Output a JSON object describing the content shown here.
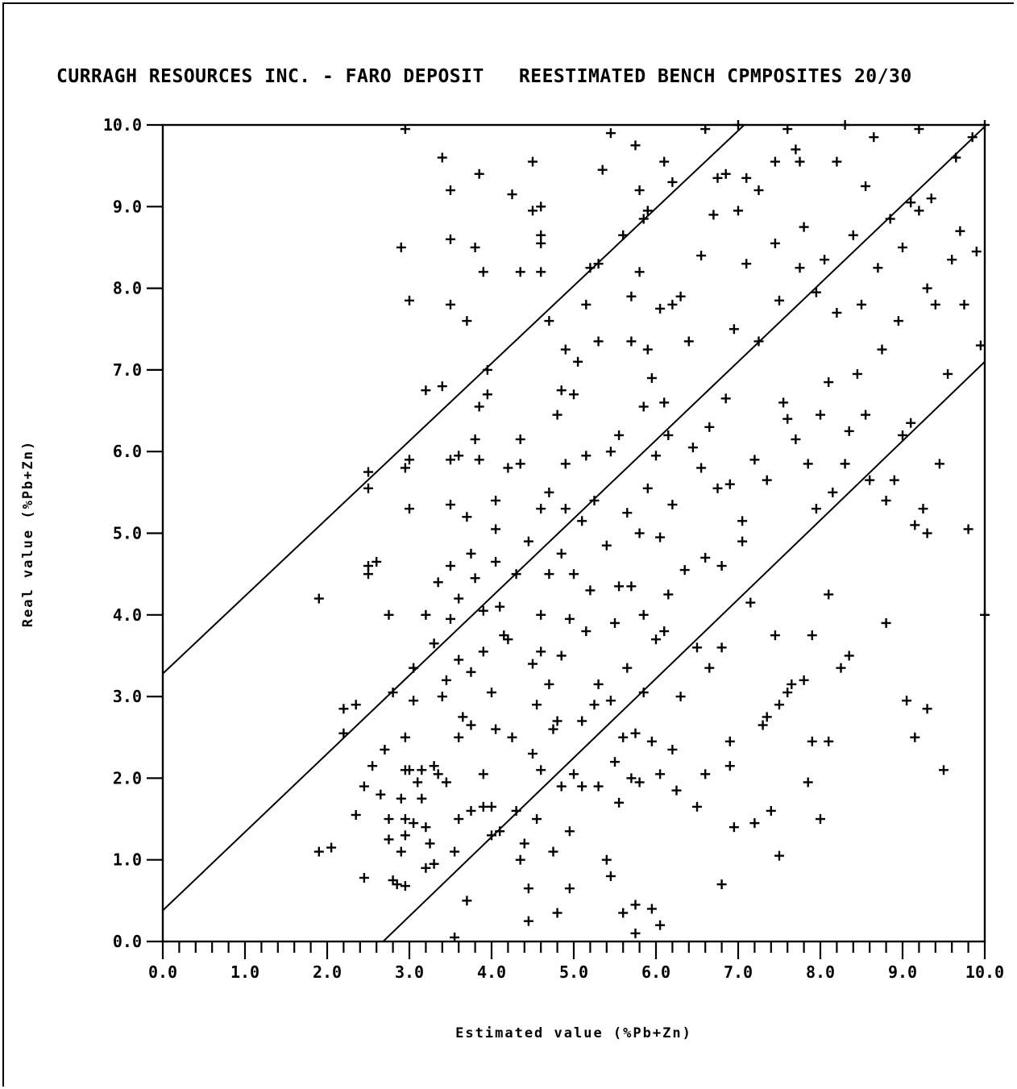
{
  "chart_data": {
    "type": "scatter",
    "title": "CURRAGH RESOURCES INC. - FARO DEPOSIT   REESTIMATED BENCH CPMPOSITES 20/30",
    "xlabel": "Estimated value  (%Pb+Zn)",
    "ylabel": "Real value  (%Pb+Zn)",
    "xlim": [
      0,
      10
    ],
    "ylim": [
      0,
      10
    ],
    "xticks": [
      "0.0",
      "1.0",
      "2.0",
      "3.0",
      "4.0",
      "5.0",
      "6.0",
      "7.0",
      "8.0",
      "9.0",
      "10.0"
    ],
    "yticks": [
      "0.0",
      "1.0",
      "2.0",
      "3.0",
      "4.0",
      "5.0",
      "6.0",
      "7.0",
      "8.0",
      "9.0",
      "10.0"
    ],
    "grid": false,
    "marker": "+",
    "reference_lines": [
      {
        "slope": 0.95,
        "intercept": 3.28
      },
      {
        "slope": 0.96,
        "intercept": 0.38
      },
      {
        "slope": 0.97,
        "intercept": -2.6
      }
    ],
    "points": [
      [
        1.9,
        1.1
      ],
      [
        2.05,
        1.15
      ],
      [
        1.9,
        4.2
      ],
      [
        2.2,
        2.85
      ],
      [
        2.35,
        2.9
      ],
      [
        2.2,
        2.55
      ],
      [
        2.35,
        1.55
      ],
      [
        2.45,
        0.78
      ],
      [
        2.45,
        1.9
      ],
      [
        2.55,
        2.15
      ],
      [
        2.5,
        4.5
      ],
      [
        2.5,
        4.6
      ],
      [
        2.6,
        4.65
      ],
      [
        2.5,
        5.55
      ],
      [
        2.5,
        5.75
      ],
      [
        2.75,
        1.5
      ],
      [
        2.8,
        0.75
      ],
      [
        2.85,
        0.7
      ],
      [
        2.75,
        4.0
      ],
      [
        2.8,
        3.05
      ],
      [
        2.7,
        2.35
      ],
      [
        2.75,
        1.25
      ],
      [
        2.65,
        1.8
      ],
      [
        2.95,
        0.68
      ],
      [
        2.9,
        1.1
      ],
      [
        2.95,
        1.5
      ],
      [
        2.95,
        1.3
      ],
      [
        2.9,
        1.75
      ],
      [
        2.95,
        2.1
      ],
      [
        2.95,
        2.5
      ],
      [
        3.0,
        2.1
      ],
      [
        3.05,
        1.45
      ],
      [
        3.1,
        1.95
      ],
      [
        3.15,
        1.75
      ],
      [
        3.15,
        2.1
      ],
      [
        3.05,
        2.95
      ],
      [
        3.05,
        3.35
      ],
      [
        3.0,
        5.3
      ],
      [
        2.95,
        5.8
      ],
      [
        3.0,
        5.9
      ],
      [
        2.9,
        8.5
      ],
      [
        3.0,
        7.85
      ],
      [
        2.95,
        9.95
      ],
      [
        3.2,
        0.9
      ],
      [
        3.3,
        0.95
      ],
      [
        3.2,
        1.4
      ],
      [
        3.25,
        1.2
      ],
      [
        3.3,
        2.15
      ],
      [
        3.35,
        2.05
      ],
      [
        3.45,
        1.95
      ],
      [
        3.3,
        3.65
      ],
      [
        3.35,
        4.4
      ],
      [
        3.2,
        4.0
      ],
      [
        3.2,
        6.75
      ],
      [
        3.4,
        6.8
      ],
      [
        3.4,
        3.0
      ],
      [
        3.45,
        3.2
      ],
      [
        3.5,
        3.95
      ],
      [
        3.5,
        4.6
      ],
      [
        3.5,
        5.35
      ],
      [
        3.5,
        5.9
      ],
      [
        3.5,
        7.8
      ],
      [
        3.5,
        8.6
      ],
      [
        3.5,
        9.2
      ],
      [
        3.4,
        9.6
      ],
      [
        3.55,
        1.1
      ],
      [
        3.6,
        1.5
      ],
      [
        3.6,
        2.5
      ],
      [
        3.65,
        2.75
      ],
      [
        3.6,
        3.45
      ],
      [
        3.6,
        4.2
      ],
      [
        3.6,
        5.95
      ],
      [
        3.55,
        0.05
      ],
      [
        3.7,
        0.5
      ],
      [
        3.75,
        1.6
      ],
      [
        3.75,
        2.65
      ],
      [
        3.75,
        3.3
      ],
      [
        3.8,
        4.45
      ],
      [
        3.7,
        5.2
      ],
      [
        3.75,
        4.75
      ],
      [
        3.7,
        7.6
      ],
      [
        3.8,
        8.5
      ],
      [
        3.8,
        6.15
      ],
      [
        3.85,
        5.9
      ],
      [
        3.85,
        6.55
      ],
      [
        3.9,
        1.65
      ],
      [
        3.9,
        2.05
      ],
      [
        3.9,
        3.55
      ],
      [
        3.9,
        4.05
      ],
      [
        3.95,
        6.7
      ],
      [
        3.95,
        7.0
      ],
      [
        3.9,
        8.2
      ],
      [
        3.85,
        9.4
      ],
      [
        4.0,
        1.3
      ],
      [
        4.0,
        1.65
      ],
      [
        4.05,
        2.6
      ],
      [
        4.0,
        3.05
      ],
      [
        4.05,
        4.65
      ],
      [
        4.05,
        5.05
      ],
      [
        4.05,
        5.4
      ],
      [
        4.1,
        1.35
      ],
      [
        4.1,
        4.1
      ],
      [
        4.15,
        3.75
      ],
      [
        4.2,
        3.7
      ],
      [
        4.2,
        5.8
      ],
      [
        4.25,
        2.5
      ],
      [
        4.3,
        1.6
      ],
      [
        4.3,
        4.5
      ],
      [
        4.35,
        1.0
      ],
      [
        4.4,
        1.2
      ],
      [
        4.35,
        5.85
      ],
      [
        4.35,
        6.15
      ],
      [
        4.35,
        8.2
      ],
      [
        4.25,
        9.15
      ],
      [
        4.45,
        0.25
      ],
      [
        4.45,
        0.65
      ],
      [
        4.5,
        2.3
      ],
      [
        4.5,
        3.4
      ],
      [
        4.55,
        2.9
      ],
      [
        4.45,
        4.9
      ],
      [
        4.5,
        8.95
      ],
      [
        4.5,
        9.55
      ],
      [
        4.55,
        1.5
      ],
      [
        4.6,
        2.1
      ],
      [
        4.6,
        3.55
      ],
      [
        4.6,
        4.0
      ],
      [
        4.6,
        5.3
      ],
      [
        4.6,
        8.2
      ],
      [
        4.6,
        8.55
      ],
      [
        4.6,
        8.65
      ],
      [
        4.6,
        9.0
      ],
      [
        4.7,
        3.15
      ],
      [
        4.7,
        4.5
      ],
      [
        4.75,
        1.1
      ],
      [
        4.75,
        2.6
      ],
      [
        4.7,
        5.5
      ],
      [
        4.7,
        7.6
      ],
      [
        4.8,
        0.35
      ],
      [
        4.8,
        2.7
      ],
      [
        4.8,
        6.45
      ],
      [
        4.85,
        1.9
      ],
      [
        4.85,
        3.5
      ],
      [
        4.85,
        4.75
      ],
      [
        4.85,
        6.75
      ],
      [
        4.9,
        5.3
      ],
      [
        4.9,
        5.85
      ],
      [
        4.9,
        7.25
      ],
      [
        4.95,
        0.65
      ],
      [
        4.95,
        1.35
      ],
      [
        4.95,
        3.95
      ],
      [
        5.0,
        2.05
      ],
      [
        5.0,
        4.5
      ],
      [
        5.0,
        6.7
      ],
      [
        5.05,
        7.1
      ],
      [
        5.1,
        1.9
      ],
      [
        5.1,
        2.7
      ],
      [
        5.1,
        5.15
      ],
      [
        5.15,
        3.8
      ],
      [
        5.15,
        5.95
      ],
      [
        5.15,
        7.8
      ],
      [
        5.2,
        4.3
      ],
      [
        5.2,
        8.25
      ],
      [
        5.25,
        5.4
      ],
      [
        5.25,
        2.9
      ],
      [
        5.3,
        1.9
      ],
      [
        5.3,
        3.15
      ],
      [
        5.3,
        7.35
      ],
      [
        5.3,
        8.3
      ],
      [
        5.35,
        9.45
      ],
      [
        5.4,
        1.0
      ],
      [
        5.4,
        4.85
      ],
      [
        5.45,
        0.8
      ],
      [
        5.45,
        2.95
      ],
      [
        5.45,
        6.0
      ],
      [
        5.45,
        9.9
      ],
      [
        5.5,
        2.2
      ],
      [
        5.5,
        3.9
      ],
      [
        5.55,
        1.7
      ],
      [
        5.55,
        4.35
      ],
      [
        5.55,
        6.2
      ],
      [
        5.6,
        0.35
      ],
      [
        5.6,
        2.5
      ],
      [
        5.6,
        8.65
      ],
      [
        5.65,
        3.35
      ],
      [
        5.65,
        5.25
      ],
      [
        5.7,
        2.0
      ],
      [
        5.7,
        4.35
      ],
      [
        5.7,
        7.35
      ],
      [
        5.7,
        7.9
      ],
      [
        5.75,
        0.1
      ],
      [
        5.75,
        0.45
      ],
      [
        5.75,
        2.55
      ],
      [
        5.75,
        9.75
      ],
      [
        5.8,
        1.95
      ],
      [
        5.8,
        5.0
      ],
      [
        5.8,
        8.2
      ],
      [
        5.8,
        9.2
      ],
      [
        5.85,
        3.05
      ],
      [
        5.85,
        4.0
      ],
      [
        5.85,
        6.55
      ],
      [
        5.85,
        8.85
      ],
      [
        5.9,
        5.55
      ],
      [
        5.9,
        7.25
      ],
      [
        5.9,
        8.95
      ],
      [
        5.95,
        0.4
      ],
      [
        5.95,
        2.45
      ],
      [
        5.95,
        6.9
      ],
      [
        6.0,
        3.7
      ],
      [
        6.0,
        5.95
      ],
      [
        6.05,
        0.2
      ],
      [
        6.05,
        2.05
      ],
      [
        6.05,
        4.95
      ],
      [
        6.05,
        7.75
      ],
      [
        6.1,
        3.8
      ],
      [
        6.1,
        6.6
      ],
      [
        6.1,
        9.55
      ],
      [
        6.15,
        4.25
      ],
      [
        6.15,
        6.2
      ],
      [
        6.2,
        2.35
      ],
      [
        6.2,
        5.35
      ],
      [
        6.2,
        7.8
      ],
      [
        6.2,
        9.3
      ],
      [
        6.25,
        1.85
      ],
      [
        6.3,
        3.0
      ],
      [
        6.3,
        7.9
      ],
      [
        6.35,
        4.55
      ],
      [
        6.4,
        7.35
      ],
      [
        6.45,
        6.05
      ],
      [
        6.5,
        1.65
      ],
      [
        6.5,
        3.6
      ],
      [
        6.55,
        5.8
      ],
      [
        6.55,
        8.4
      ],
      [
        6.6,
        2.05
      ],
      [
        6.6,
        4.7
      ],
      [
        6.6,
        9.95
      ],
      [
        6.65,
        3.35
      ],
      [
        6.65,
        6.3
      ],
      [
        6.7,
        8.9
      ],
      [
        6.75,
        9.35
      ],
      [
        6.75,
        5.55
      ],
      [
        6.8,
        0.7
      ],
      [
        6.8,
        4.6
      ],
      [
        6.8,
        3.6
      ],
      [
        6.85,
        6.65
      ],
      [
        6.85,
        9.4
      ],
      [
        6.9,
        2.45
      ],
      [
        6.9,
        2.15
      ],
      [
        6.9,
        5.6
      ],
      [
        6.95,
        1.4
      ],
      [
        6.95,
        7.5
      ],
      [
        7.0,
        8.95
      ],
      [
        7.0,
        10.0
      ],
      [
        7.05,
        4.9
      ],
      [
        7.05,
        5.15
      ],
      [
        7.1,
        8.3
      ],
      [
        7.1,
        9.35
      ],
      [
        7.15,
        4.15
      ],
      [
        7.2,
        1.45
      ],
      [
        7.2,
        5.9
      ],
      [
        7.25,
        7.35
      ],
      [
        7.25,
        9.2
      ],
      [
        7.3,
        2.65
      ],
      [
        7.35,
        2.75
      ],
      [
        7.35,
        5.65
      ],
      [
        7.4,
        1.6
      ],
      [
        7.45,
        3.75
      ],
      [
        7.45,
        8.55
      ],
      [
        7.45,
        9.55
      ],
      [
        7.5,
        1.05
      ],
      [
        7.5,
        2.9
      ],
      [
        7.5,
        7.85
      ],
      [
        7.55,
        6.6
      ],
      [
        7.6,
        3.05
      ],
      [
        7.6,
        6.4
      ],
      [
        7.6,
        9.95
      ],
      [
        7.65,
        3.15
      ],
      [
        7.7,
        6.15
      ],
      [
        7.7,
        9.7
      ],
      [
        7.75,
        8.25
      ],
      [
        7.75,
        9.55
      ],
      [
        7.8,
        3.2
      ],
      [
        7.8,
        8.75
      ],
      [
        7.85,
        1.95
      ],
      [
        7.85,
        5.85
      ],
      [
        7.9,
        2.45
      ],
      [
        7.9,
        3.75
      ],
      [
        7.95,
        5.3
      ],
      [
        7.95,
        7.95
      ],
      [
        8.0,
        1.5
      ],
      [
        8.0,
        6.45
      ],
      [
        8.05,
        8.35
      ],
      [
        8.1,
        4.25
      ],
      [
        8.1,
        6.85
      ],
      [
        8.1,
        2.45
      ],
      [
        8.15,
        5.5
      ],
      [
        8.2,
        7.7
      ],
      [
        8.2,
        9.55
      ],
      [
        8.25,
        3.35
      ],
      [
        8.3,
        5.85
      ],
      [
        8.3,
        10.0
      ],
      [
        8.35,
        3.5
      ],
      [
        8.35,
        6.25
      ],
      [
        8.4,
        8.65
      ],
      [
        8.45,
        6.95
      ],
      [
        8.5,
        7.8
      ],
      [
        8.55,
        6.45
      ],
      [
        8.55,
        9.25
      ],
      [
        8.6,
        5.65
      ],
      [
        8.65,
        9.85
      ],
      [
        8.7,
        8.25
      ],
      [
        8.75,
        7.25
      ],
      [
        8.8,
        3.9
      ],
      [
        8.8,
        5.4
      ],
      [
        8.85,
        8.85
      ],
      [
        8.9,
        5.65
      ],
      [
        8.95,
        7.6
      ],
      [
        9.0,
        6.2
      ],
      [
        9.0,
        8.5
      ],
      [
        9.05,
        2.95
      ],
      [
        9.1,
        6.35
      ],
      [
        9.1,
        9.05
      ],
      [
        9.15,
        2.5
      ],
      [
        9.15,
        5.1
      ],
      [
        9.2,
        8.95
      ],
      [
        9.2,
        9.95
      ],
      [
        9.25,
        5.3
      ],
      [
        9.3,
        2.85
      ],
      [
        9.3,
        5.0
      ],
      [
        9.3,
        8.0
      ],
      [
        9.35,
        9.1
      ],
      [
        9.4,
        7.8
      ],
      [
        9.45,
        5.85
      ],
      [
        9.5,
        2.1
      ],
      [
        9.55,
        6.95
      ],
      [
        9.6,
        8.35
      ],
      [
        9.65,
        9.6
      ],
      [
        9.7,
        8.7
      ],
      [
        9.75,
        7.8
      ],
      [
        9.8,
        5.05
      ],
      [
        9.85,
        9.85
      ],
      [
        9.9,
        8.45
      ],
      [
        9.95,
        7.3
      ],
      [
        10.0,
        4.0
      ],
      [
        10.0,
        10.0
      ]
    ]
  }
}
